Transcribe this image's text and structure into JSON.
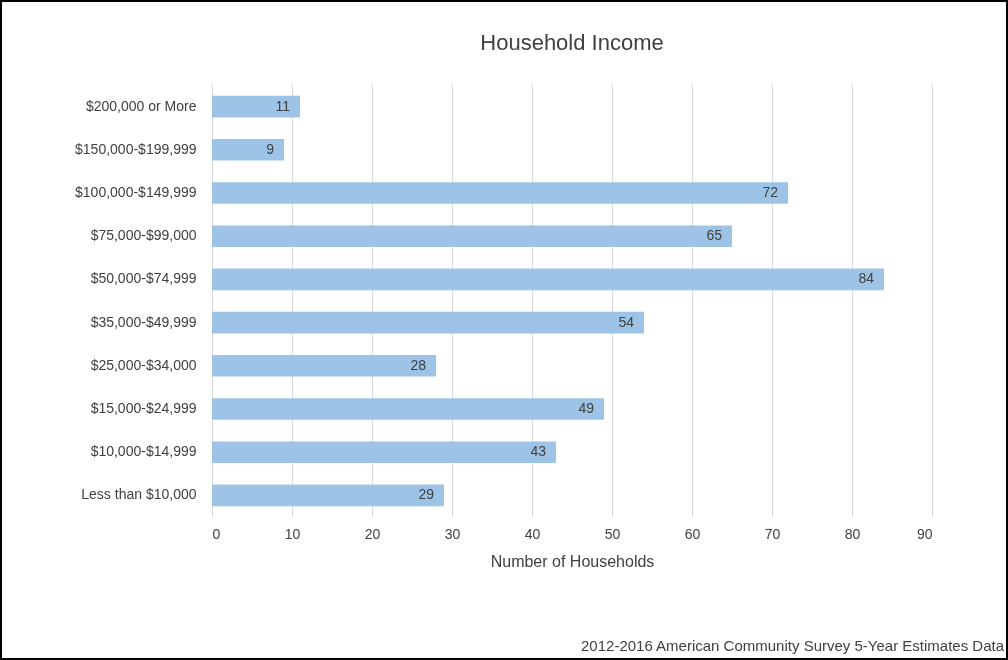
{
  "chart_data": {
    "type": "bar",
    "orientation": "horizontal",
    "title": "Household Income",
    "xlabel": "Number of Households",
    "categories": [
      "$200,000 or More",
      "$150,000-$199,999",
      "$100,000-$149,999",
      "$75,000-$99,000",
      "$50,000-$74,999",
      "$35,000-$49,999",
      "$25,000-$34,000",
      "$15,000-$24,999",
      "$10,000-$14,999",
      "Less than $10,000"
    ],
    "values": [
      11,
      9,
      72,
      65,
      84,
      54,
      28,
      49,
      43,
      29
    ],
    "color": "#9dc3e6",
    "xlim": [
      0,
      90
    ],
    "xticks": [
      0,
      10,
      20,
      30,
      40,
      50,
      60,
      70,
      80,
      90
    ],
    "grid": "x",
    "data_labels": true,
    "annotations": [
      "2012-2016 American Community Survey 5-Year Estimates Data"
    ]
  }
}
